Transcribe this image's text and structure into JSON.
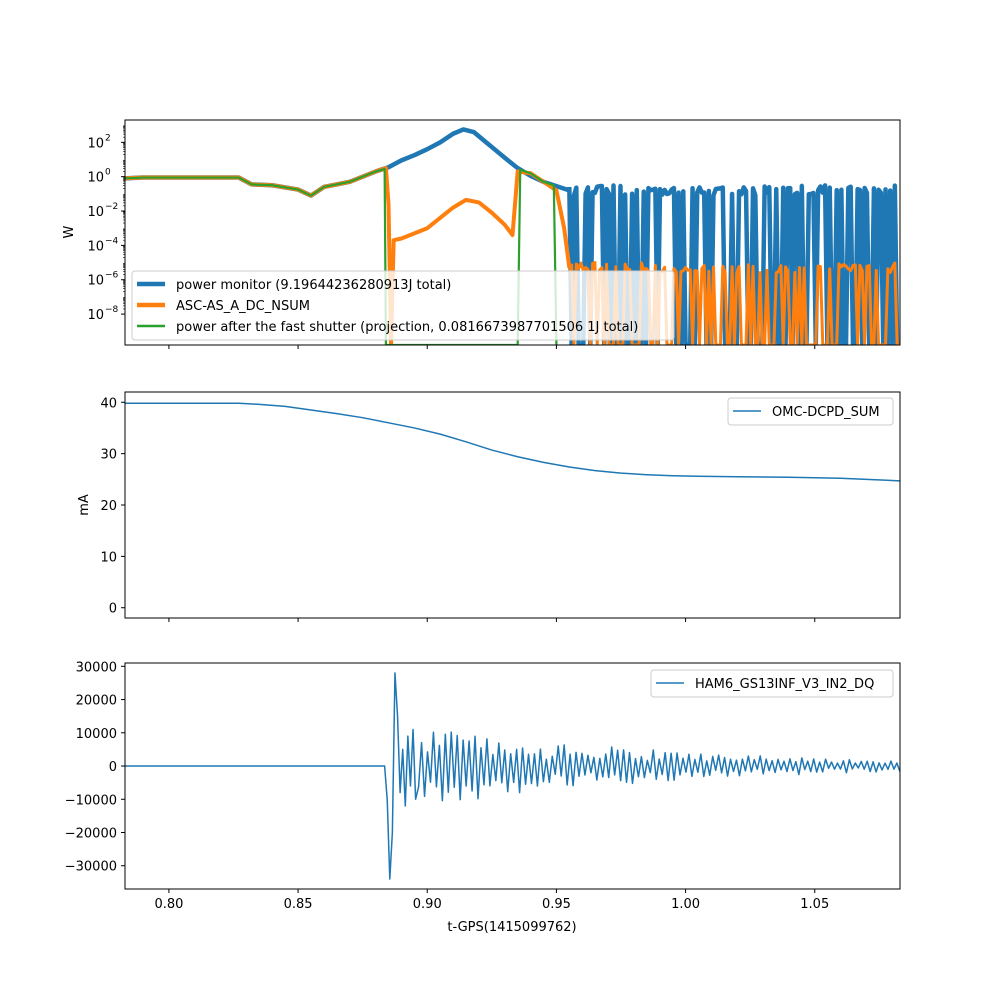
{
  "colors": {
    "c0": "#1f77b4",
    "c1": "#ff7f0e",
    "c2": "#2ca02c",
    "axes": "#000000",
    "background": "#ffffff"
  },
  "chart_data": [
    {
      "type": "line",
      "ylabel": "W",
      "ylog": true,
      "xlim": [
        0.783,
        1.083
      ],
      "ylim_exponent": [
        -9.8,
        3.3
      ],
      "yticks": [
        {
          "exp": 2,
          "label": "10^2"
        },
        {
          "exp": 0,
          "label": "10^0"
        },
        {
          "exp": -2,
          "label": "10^-2"
        },
        {
          "exp": -4,
          "label": "10^-4"
        },
        {
          "exp": -6,
          "label": "10^-6"
        },
        {
          "exp": -8,
          "label": "10^-8"
        }
      ],
      "legend_position": "lower-left",
      "series": [
        {
          "name": "power monitor (9.19644236280913J total)",
          "color": "c0",
          "x": [
            0.783,
            0.79,
            0.8,
            0.81,
            0.82,
            0.827,
            0.832,
            0.84,
            0.85,
            0.855,
            0.86,
            0.87,
            0.88,
            0.885,
            0.89,
            0.895,
            0.9,
            0.905,
            0.91,
            0.914,
            0.918,
            0.922,
            0.926,
            0.93,
            0.935,
            0.94,
            0.945,
            0.95,
            0.955
          ],
          "log10_values": [
            -0.1,
            -0.05,
            -0.05,
            -0.05,
            -0.05,
            -0.05,
            -0.45,
            -0.5,
            -0.75,
            -1.1,
            -0.6,
            -0.3,
            0.3,
            0.55,
            0.95,
            1.25,
            1.6,
            2.0,
            2.5,
            2.75,
            2.6,
            2.1,
            1.6,
            1.1,
            0.5,
            0.05,
            -0.3,
            -0.55,
            -0.8
          ],
          "noise_start": 0.955,
          "noise_high_log10": -0.8,
          "noise_low_log10": -9.8
        },
        {
          "name": "ASC-AS_A_DC_NSUM",
          "color": "c1",
          "x": [
            0.783,
            0.79,
            0.8,
            0.81,
            0.82,
            0.827,
            0.832,
            0.84,
            0.85,
            0.855,
            0.86,
            0.87,
            0.88,
            0.884,
            0.885,
            0.886,
            0.887,
            0.89,
            0.9,
            0.91,
            0.915,
            0.92,
            0.925,
            0.93,
            0.933,
            0.935,
            0.94,
            0.945,
            0.95,
            0.953,
            0.955
          ],
          "log10_values": [
            -0.1,
            -0.05,
            -0.05,
            -0.05,
            -0.05,
            -0.05,
            -0.45,
            -0.5,
            -0.75,
            -1.1,
            -0.6,
            -0.3,
            0.3,
            0.5,
            -1.6,
            -9.8,
            -3.7,
            -3.6,
            -3.0,
            -1.8,
            -1.35,
            -1.5,
            -2.1,
            -2.8,
            -3.4,
            0.3,
            0.2,
            -0.3,
            -0.8,
            -3.0,
            -5.3
          ],
          "noise_start": 0.955,
          "noise_high_log10": -5.3,
          "noise_low_log10": -9.8
        },
        {
          "name": "power after the fast shutter (projection, 0.0816673987701506 1J total)",
          "color": "c2",
          "x": [
            0.783,
            0.79,
            0.8,
            0.81,
            0.82,
            0.827,
            0.832,
            0.84,
            0.85,
            0.855,
            0.86,
            0.87,
            0.88,
            0.8835,
            0.884,
            0.935,
            0.936,
            0.94,
            0.945,
            0.949,
            0.95
          ],
          "log10_values": [
            -0.1,
            -0.05,
            -0.05,
            -0.05,
            -0.05,
            -0.05,
            -0.45,
            -0.5,
            -0.75,
            -1.1,
            -0.6,
            -0.3,
            0.3,
            0.45,
            -9.8,
            -9.8,
            0.4,
            0.2,
            -0.3,
            -0.5,
            -9.8
          ]
        }
      ]
    },
    {
      "type": "line",
      "ylabel": "mA",
      "xlim": [
        0.783,
        1.083
      ],
      "ylim": [
        -2,
        42
      ],
      "yticks": [
        0,
        10,
        20,
        30,
        40
      ],
      "legend_position": "upper-right",
      "series": [
        {
          "name": "OMC-DCPD_SUM",
          "color": "c0",
          "x": [
            0.783,
            0.8,
            0.82,
            0.827,
            0.835,
            0.845,
            0.855,
            0.865,
            0.875,
            0.885,
            0.895,
            0.905,
            0.915,
            0.925,
            0.935,
            0.945,
            0.955,
            0.965,
            0.975,
            0.985,
            0.995,
            1.005,
            1.02,
            1.04,
            1.06,
            1.083
          ],
          "values": [
            39.8,
            39.8,
            39.8,
            39.8,
            39.6,
            39.2,
            38.5,
            37.8,
            37.0,
            36.0,
            35.0,
            33.8,
            32.3,
            30.7,
            29.4,
            28.3,
            27.4,
            26.7,
            26.2,
            25.9,
            25.7,
            25.6,
            25.5,
            25.4,
            25.2,
            24.7
          ]
        }
      ]
    },
    {
      "type": "line",
      "ylabel": "",
      "xlabel": "t-GPS(1415099762)",
      "xlim": [
        0.783,
        1.083
      ],
      "ylim": [
        -37000,
        31000
      ],
      "yticks": [
        30000,
        20000,
        10000,
        0,
        -10000,
        -20000,
        -30000
      ],
      "ytick_labels": [
        "30000",
        "20000",
        "10000",
        "0",
        "−10000",
        "−20000",
        "−30000"
      ],
      "xticks": [
        0.8,
        0.85,
        0.9,
        0.95,
        1.0,
        1.05
      ],
      "xtick_labels": [
        "0.80",
        "0.85",
        "0.90",
        "0.95",
        "1.00",
        "1.05"
      ],
      "legend_position": "upper-right",
      "series": [
        {
          "name": "HAM6_GS13INF_V3_IN2_DQ",
          "color": "c0",
          "x": [
            0.783,
            0.8,
            0.85,
            0.8835,
            0.8845,
            0.8855,
            0.8865,
            0.8875,
            0.8885,
            0.8895,
            0.8905,
            0.8915,
            0.8925,
            0.8935,
            0.8945,
            0.8955
          ],
          "values": [
            0,
            0,
            0,
            0,
            -10000,
            -34000,
            -20000,
            28000,
            15000,
            -8000,
            5000,
            -12000,
            9000,
            -6000,
            11000,
            -10000
          ],
          "oscillation": {
            "start": 0.8955,
            "end": 1.083,
            "start_amplitude": 12000,
            "end_amplitude": 1500,
            "period": 0.0023
          }
        }
      ]
    }
  ]
}
